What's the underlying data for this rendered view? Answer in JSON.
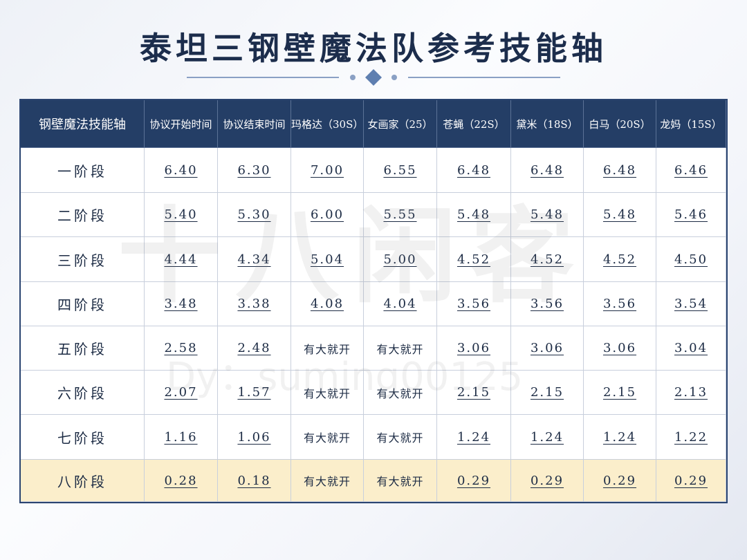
{
  "header": {
    "title": "泰坦三钢壁魔法队参考技能轴"
  },
  "watermark": {
    "main": "十八闲客",
    "sub": "Dy：suming00125"
  },
  "table": {
    "columns": [
      "钢壁魔法技能轴",
      "协议开始时间",
      "协议结束时间",
      "玛格达（30S）",
      "女画家（25）",
      "苍蝇（22S）",
      "黛米（18S）",
      "白马（20S）",
      "龙妈（15S）"
    ],
    "rows": [
      [
        "一阶段",
        "6.40",
        "6.30",
        "7.00",
        "6.55",
        "6.48",
        "6.48",
        "6.48",
        "6.46"
      ],
      [
        "二阶段",
        "5.40",
        "5.30",
        "6.00",
        "5.55",
        "5.48",
        "5.48",
        "5.48",
        "5.46"
      ],
      [
        "三阶段",
        "4.44",
        "4.34",
        "5.04",
        "5.00",
        "4.52",
        "4.52",
        "4.52",
        "4.50"
      ],
      [
        "四阶段",
        "3.48",
        "3.38",
        "4.08",
        "4.04",
        "3.56",
        "3.56",
        "3.56",
        "3.54"
      ],
      [
        "五阶段",
        "2.58",
        "2.48",
        "有大就开",
        "有大就开",
        "3.06",
        "3.06",
        "3.06",
        "3.04"
      ],
      [
        "六阶段",
        "2.07",
        "1.57",
        "有大就开",
        "有大就开",
        "2.15",
        "2.15",
        "2.15",
        "2.13"
      ],
      [
        "七阶段",
        "1.16",
        "1.06",
        "有大就开",
        "有大就开",
        "1.24",
        "1.24",
        "1.24",
        "1.22"
      ],
      [
        "八阶段",
        "0.28",
        "0.18",
        "有大就开",
        "有大就开",
        "0.29",
        "0.29",
        "0.29",
        "0.29"
      ]
    ]
  }
}
